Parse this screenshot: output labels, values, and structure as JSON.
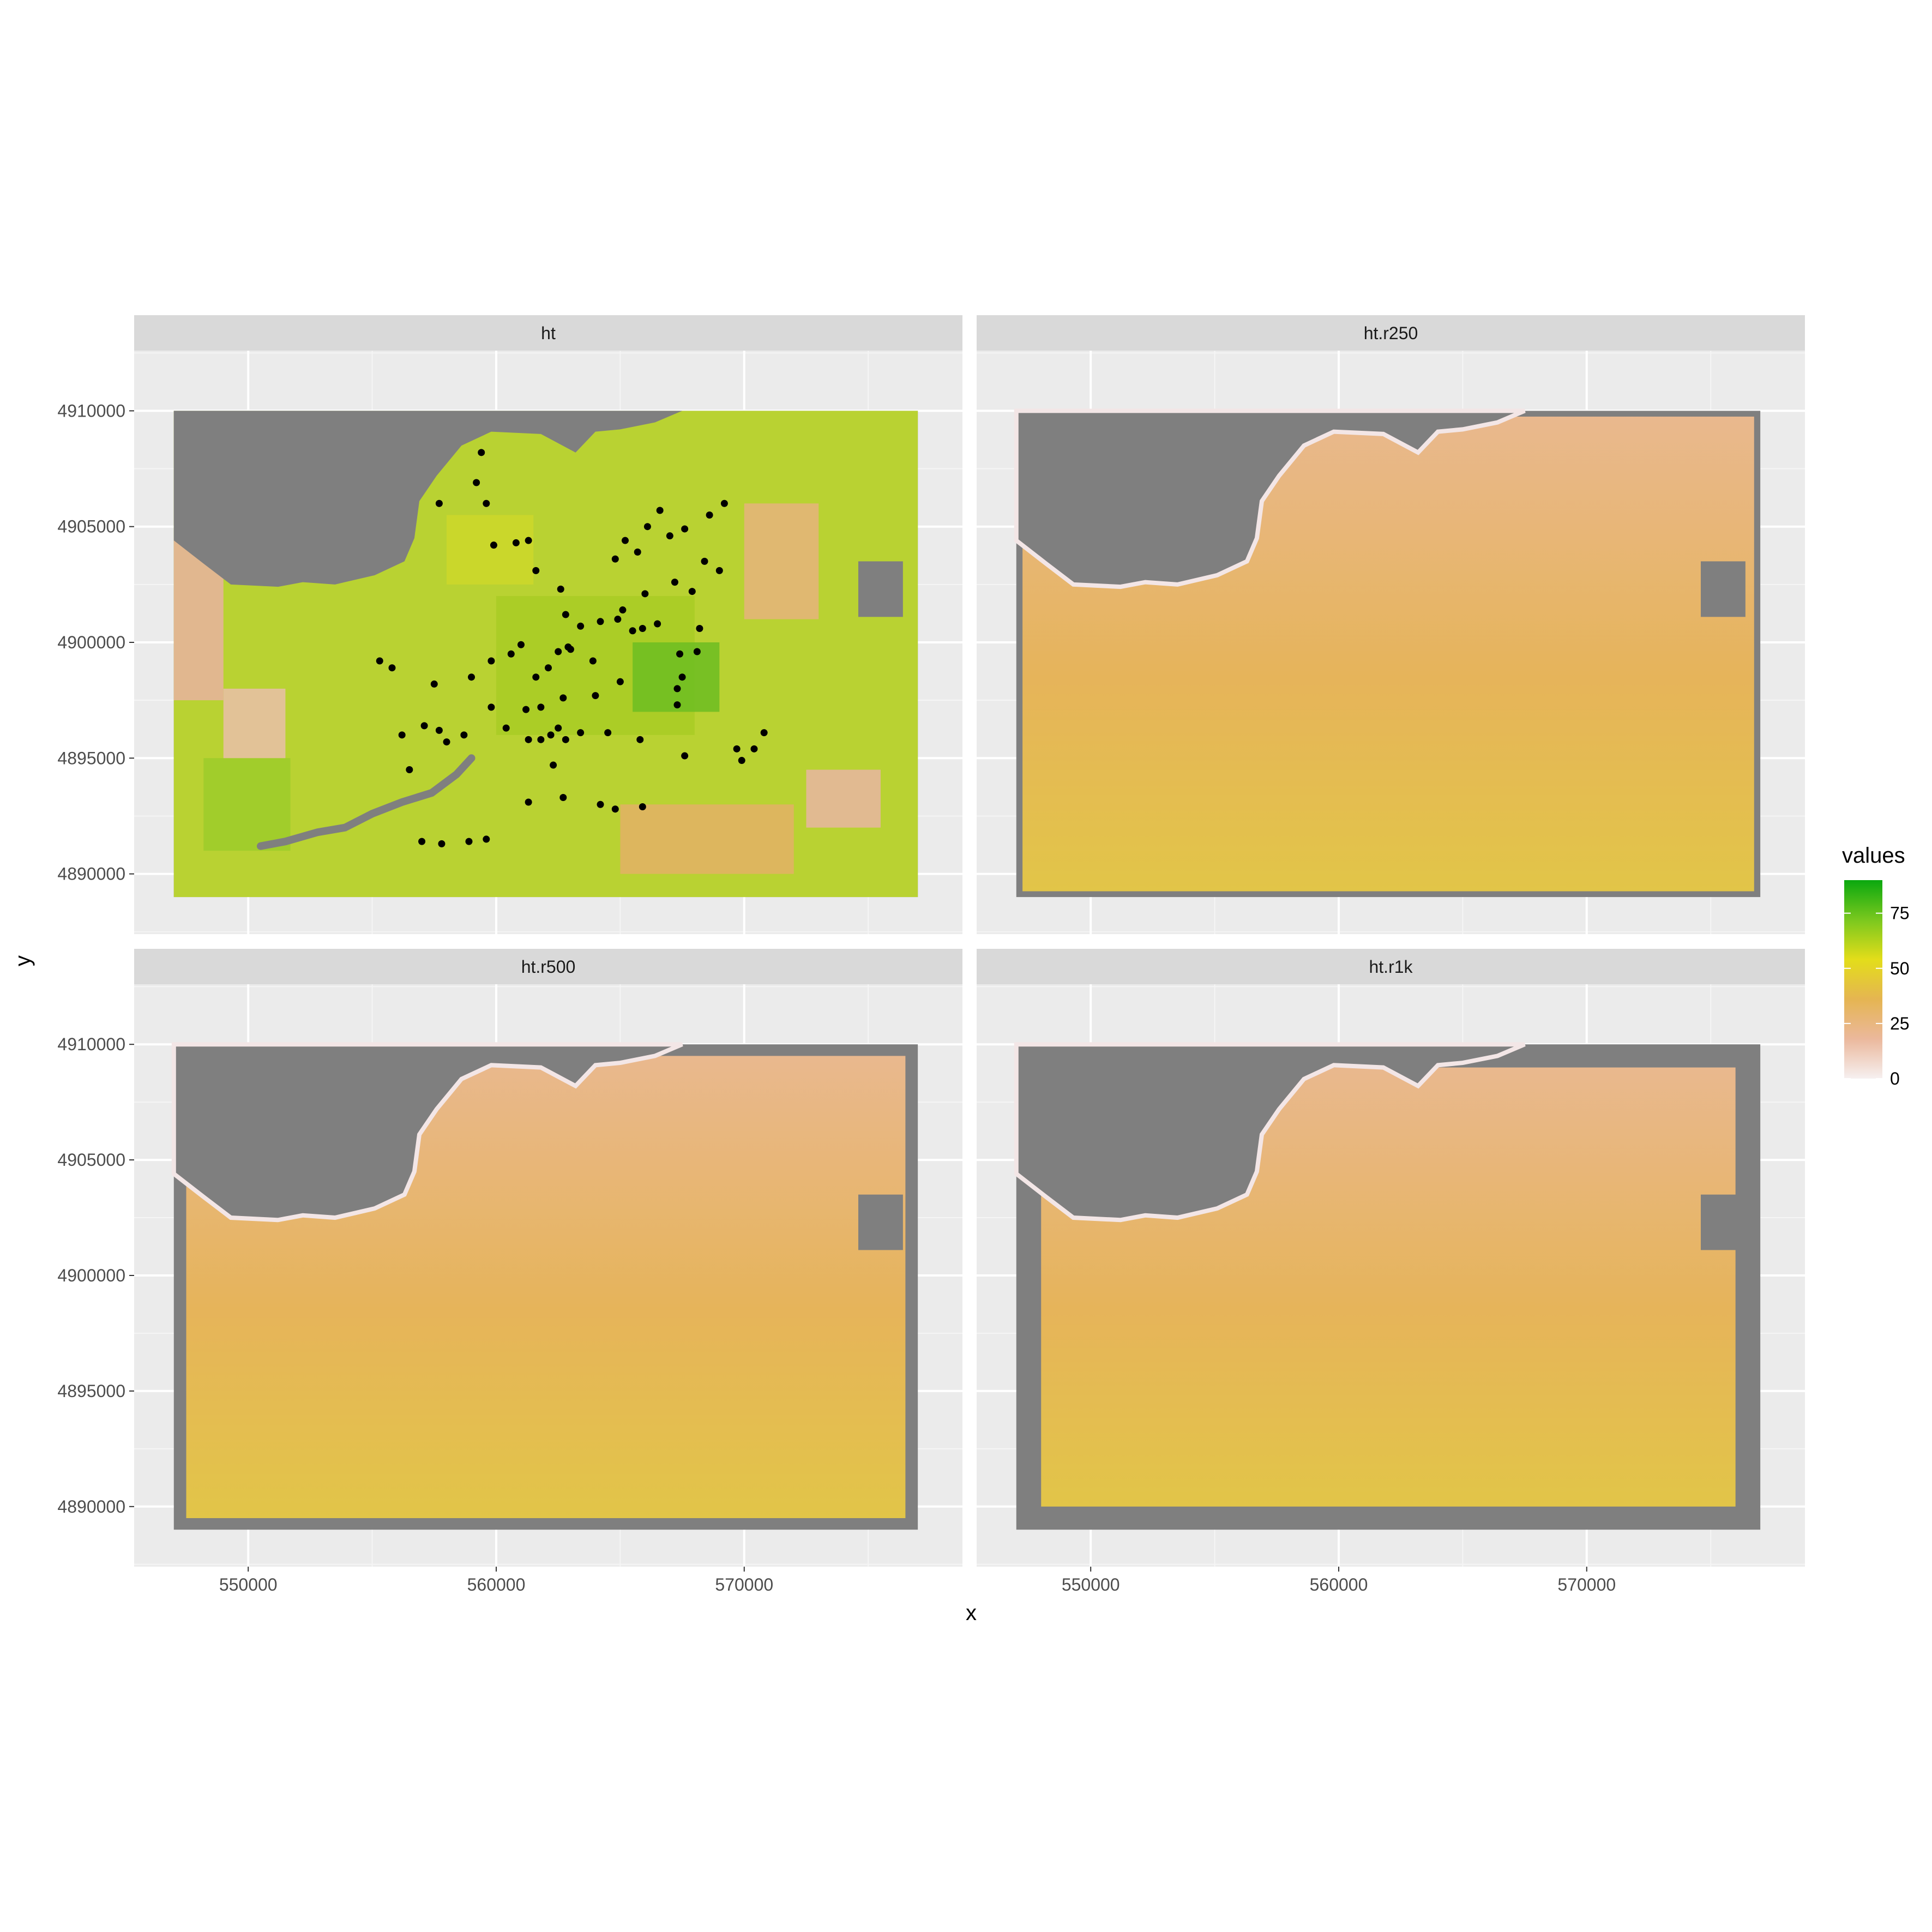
{
  "chart_data": {
    "type": "heatmap",
    "facets": [
      {
        "label": "ht",
        "smoothing": "none"
      },
      {
        "label": "ht.r250",
        "smoothing": "250 m"
      },
      {
        "label": "ht.r500",
        "smoothing": "500 m"
      },
      {
        "label": "ht.r1k",
        "smoothing": "1 km"
      }
    ],
    "facet_labels": [
      "ht",
      "ht.r250",
      "ht.r500",
      "ht.r1k"
    ],
    "xlabel": "x",
    "ylabel": "y",
    "x_ticks": [
      550000,
      560000,
      570000
    ],
    "x_tick_labels": [
      "550000",
      "560000",
      "570000"
    ],
    "y_ticks": [
      4890000,
      4895000,
      4900000,
      4905000,
      4910000
    ],
    "y_tick_labels": [
      "4890000",
      "4895000",
      "4900000",
      "4905000",
      "4910000"
    ],
    "xlim": [
      545400,
      578800
    ],
    "ylim": [
      4887400,
      4912600
    ],
    "raster_extent": {
      "xmin": 547000,
      "xmax": 577000,
      "ymin": 4889000,
      "ymax": 4910000
    },
    "data_extents": [
      {
        "xmin": 547000,
        "xmax": 577000,
        "ymin": 4889000,
        "ymax": 4910000
      },
      {
        "xmin": 547250,
        "xmax": 576750,
        "ymin": 4889250,
        "ymax": 4909750
      },
      {
        "xmin": 547500,
        "xmax": 576500,
        "ymin": 4889500,
        "ymax": 4909500
      },
      {
        "xmin": 548000,
        "xmax": 576000,
        "ymin": 4890000,
        "ymax": 4909000
      }
    ],
    "legend": {
      "title": "values",
      "position": "right",
      "breaks": [
        0,
        25,
        50,
        75
      ],
      "break_labels": [
        "0",
        "25",
        "50",
        "75"
      ],
      "range": [
        0,
        90
      ],
      "colors": [
        "#f6f0f0",
        "#ebb89c",
        "#e5b552",
        "#e3dd1a",
        "#7ac81e",
        "#0aa80f"
      ]
    },
    "na_color": "#7f7f7f",
    "masked_region_north": [
      [
        547000,
        4904400
      ],
      [
        548200,
        4903400
      ],
      [
        549300,
        4902500
      ],
      [
        551200,
        4902400
      ],
      [
        552200,
        4902600
      ],
      [
        553500,
        4902500
      ],
      [
        555100,
        4902900
      ],
      [
        556300,
        4903500
      ],
      [
        556700,
        4904500
      ],
      [
        556900,
        4906100
      ],
      [
        557600,
        4907200
      ],
      [
        558600,
        4908500
      ],
      [
        559800,
        4909100
      ],
      [
        561800,
        4909000
      ],
      [
        563200,
        4908200
      ],
      [
        564000,
        4909100
      ],
      [
        565000,
        4909200
      ],
      [
        566400,
        4909500
      ],
      [
        567500,
        4910000
      ],
      [
        547000,
        4910000
      ]
    ],
    "masked_rect_east": {
      "xmin": 574600,
      "xmax": 576400,
      "ymin": 4901100,
      "ymax": 4903500
    },
    "river_path": [
      [
        550500,
        4891200
      ],
      [
        551500,
        4891400
      ],
      [
        552800,
        4891800
      ],
      [
        553900,
        4892000
      ],
      [
        555000,
        4892600
      ],
      [
        556200,
        4893100
      ],
      [
        557400,
        4893500
      ],
      [
        558400,
        4894300
      ],
      [
        559000,
        4895000
      ]
    ],
    "sample_points": [
      [
        559400,
        4908200
      ],
      [
        557700,
        4906000
      ],
      [
        559200,
        4906900
      ],
      [
        559600,
        4906000
      ],
      [
        559900,
        4904200
      ],
      [
        560800,
        4904300
      ],
      [
        561300,
        4904400
      ],
      [
        561600,
        4903100
      ],
      [
        562600,
        4902300
      ],
      [
        562800,
        4901200
      ],
      [
        563400,
        4900700
      ],
      [
        564200,
        4900900
      ],
      [
        564800,
        4903600
      ],
      [
        565200,
        4904400
      ],
      [
        565700,
        4903900
      ],
      [
        566100,
        4905000
      ],
      [
        566600,
        4905700
      ],
      [
        567000,
        4904600
      ],
      [
        567600,
        4904900
      ],
      [
        566500,
        4900800
      ],
      [
        567200,
        4902600
      ],
      [
        567900,
        4902200
      ],
      [
        568600,
        4905500
      ],
      [
        569200,
        4906000
      ],
      [
        568400,
        4903500
      ],
      [
        569000,
        4903100
      ],
      [
        568200,
        4900600
      ],
      [
        567400,
        4899500
      ],
      [
        568100,
        4899600
      ],
      [
        567500,
        4898500
      ],
      [
        567300,
        4898000
      ],
      [
        567300,
        4897300
      ],
      [
        565500,
        4900500
      ],
      [
        565900,
        4900600
      ],
      [
        565100,
        4901400
      ],
      [
        564900,
        4901000
      ],
      [
        566000,
        4902100
      ],
      [
        563000,
        4899700
      ],
      [
        562900,
        4899800
      ],
      [
        562500,
        4899600
      ],
      [
        562100,
        4898900
      ],
      [
        561600,
        4898500
      ],
      [
        561000,
        4899900
      ],
      [
        560600,
        4899500
      ],
      [
        559800,
        4899200
      ],
      [
        559000,
        4898500
      ],
      [
        557500,
        4898200
      ],
      [
        555300,
        4899200
      ],
      [
        555800,
        4898900
      ],
      [
        559800,
        4897200
      ],
      [
        561200,
        4897100
      ],
      [
        561800,
        4897200
      ],
      [
        562700,
        4897600
      ],
      [
        564000,
        4897700
      ],
      [
        565000,
        4898300
      ],
      [
        563900,
        4899200
      ],
      [
        557100,
        4896400
      ],
      [
        557700,
        4896200
      ],
      [
        558000,
        4895700
      ],
      [
        558700,
        4896000
      ],
      [
        556200,
        4896000
      ],
      [
        560400,
        4896300
      ],
      [
        561300,
        4895800
      ],
      [
        561800,
        4895800
      ],
      [
        562200,
        4896000
      ],
      [
        562500,
        4896300
      ],
      [
        562800,
        4895800
      ],
      [
        563400,
        4896100
      ],
      [
        564500,
        4896100
      ],
      [
        565800,
        4895800
      ],
      [
        567600,
        4895100
      ],
      [
        569700,
        4895400
      ],
      [
        569900,
        4894900
      ],
      [
        570400,
        4895400
      ],
      [
        570800,
        4896100
      ],
      [
        556500,
        4894500
      ],
      [
        562300,
        4894700
      ],
      [
        561300,
        4893100
      ],
      [
        562700,
        4893300
      ],
      [
        564200,
        4893000
      ],
      [
        564800,
        4892800
      ],
      [
        565900,
        4892900
      ],
      [
        557000,
        4891400
      ],
      [
        557800,
        4891300
      ],
      [
        558900,
        4891400
      ],
      [
        559600,
        4891500
      ]
    ]
  }
}
